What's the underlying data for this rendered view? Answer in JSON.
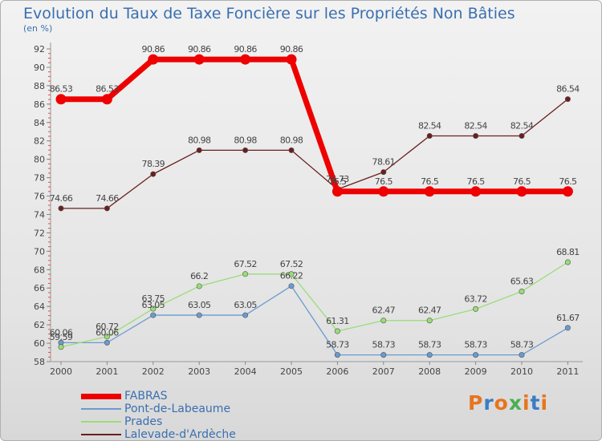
{
  "header": {
    "title": "Evolution du Taux de Taxe Foncière sur les Propriétés Non Bâties",
    "unit": "(en %)"
  },
  "logo": {
    "text": "Proxiti",
    "colors": [
      "#e8741e",
      "#3b7dc4",
      "#e8741e",
      "#4caf50",
      "#e8741e",
      "#3b7dc4",
      "#e8741e"
    ]
  },
  "chart_data": {
    "type": "line",
    "x": [
      "2000",
      "2001",
      "2002",
      "2003",
      "2004",
      "2005",
      "2006",
      "2007",
      "2008",
      "2009",
      "2010",
      "2011"
    ],
    "ylim": [
      58,
      92
    ],
    "yticks": [
      58,
      60,
      62,
      64,
      66,
      68,
      70,
      72,
      74,
      76,
      78,
      80,
      82,
      84,
      86,
      88,
      90,
      92
    ],
    "grid": false,
    "legend_position": "bottom-left",
    "series": [
      {
        "name": "FABRAS",
        "color": "#ee0000",
        "width": 7,
        "values": [
          86.53,
          86.53,
          90.86,
          90.86,
          90.86,
          90.86,
          76.5,
          76.5,
          76.5,
          76.5,
          76.5,
          76.5
        ],
        "labels": [
          "86.53",
          "86.53",
          "90.86",
          "90.86",
          "90.86",
          "90.86",
          "76.5",
          "76.5",
          "76.5",
          "76.5",
          "76.5",
          "76.5"
        ]
      },
      {
        "name": "Pont-de-Labeaume",
        "color": "#6a9bd0",
        "width": 1.3,
        "values": [
          60.06,
          60.06,
          63.05,
          63.05,
          63.05,
          66.22,
          58.73,
          58.73,
          58.73,
          58.73,
          58.73,
          61.67
        ],
        "labels": [
          "60.06",
          "60.06",
          "63.05",
          "63.05",
          "63.05",
          "66.22",
          "58.73",
          "58.73",
          "58.73",
          "58.73",
          "58.73",
          "61.67"
        ]
      },
      {
        "name": "Prades",
        "color": "#99dd77",
        "width": 1.3,
        "values": [
          59.59,
          60.72,
          63.75,
          66.2,
          67.52,
          67.52,
          61.31,
          62.47,
          62.47,
          63.72,
          65.63,
          68.81
        ],
        "labels": [
          "59.59",
          "60.72",
          "63.75",
          "66.2",
          "67.52",
          "67.52",
          "61.31",
          "62.47",
          "62.47",
          "63.72",
          "65.63",
          "68.81"
        ]
      },
      {
        "name": "Lalevade-d'Ardèche",
        "color": "#6b1e1e",
        "width": 1.3,
        "values": [
          74.66,
          74.66,
          78.39,
          80.98,
          80.98,
          80.98,
          76.73,
          78.61,
          82.54,
          82.54,
          82.54,
          86.54
        ],
        "labels": [
          "74.66",
          "74.66",
          "78.39",
          "80.98",
          "80.98",
          "80.98",
          "76.73",
          "78.61",
          "82.54",
          "82.54",
          "82.54",
          "86.54"
        ]
      }
    ]
  }
}
